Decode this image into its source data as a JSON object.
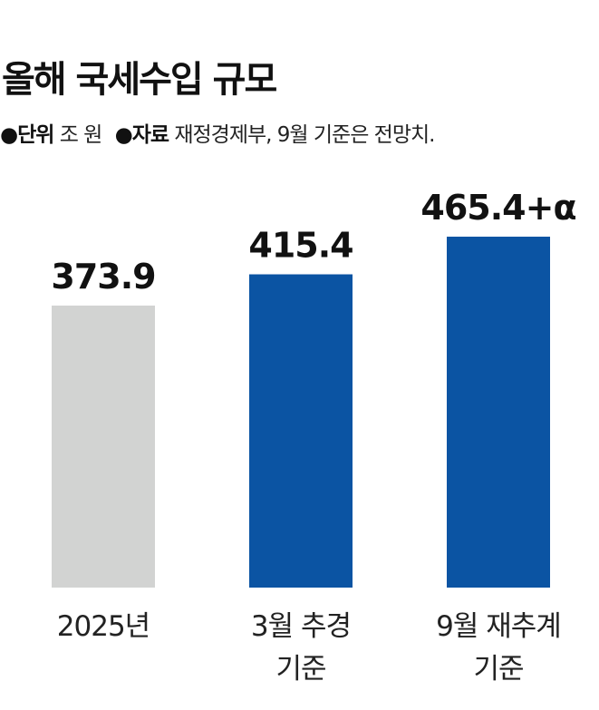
{
  "chart_data": {
    "type": "bar",
    "title": "올해 국세수입 규모",
    "meta": {
      "unit_key": "●단위",
      "unit_value": "조 원",
      "source_key": "●자료",
      "source_value": "재정경제부, 9월 기준은 전망치."
    },
    "categories": [
      [
        "2025년"
      ],
      [
        "3월 추경",
        "기준"
      ],
      [
        "9월 재추계",
        "기준"
      ]
    ],
    "values": [
      373.9,
      415.4,
      465.4
    ],
    "value_labels": [
      "373.9",
      "415.4",
      "465.4+α"
    ],
    "colors": [
      "#d2d3d2",
      "#0b54a3",
      "#0b54a3"
    ],
    "xlabel": "",
    "ylabel": "",
    "grid": false
  }
}
